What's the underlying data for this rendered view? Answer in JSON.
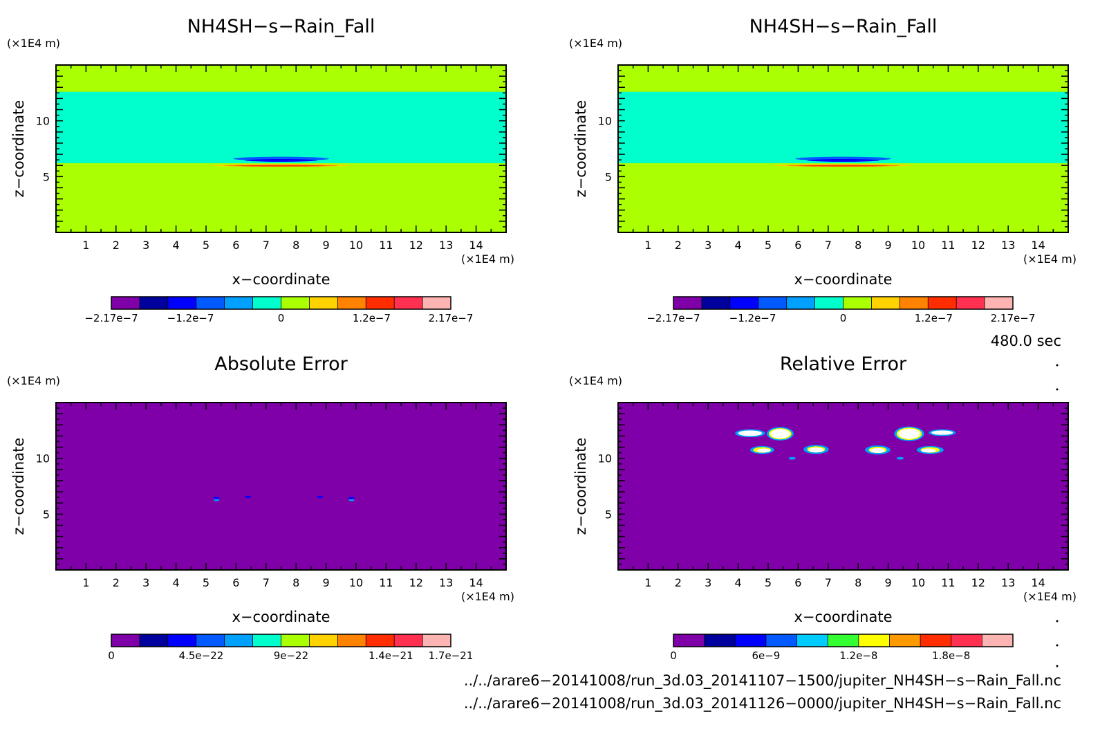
{
  "chart_data": [
    {
      "type": "heatmap",
      "title": "NH4SH−s−Rain_Fall",
      "xlabel": "x−coordinate",
      "ylabel": "z−coordinate",
      "x_unit": "(×1E4 m)",
      "y_unit": "(×1E4 m)",
      "xlim": [
        0,
        15
      ],
      "ylim": [
        0,
        15
      ],
      "xticks": [
        "1",
        "2",
        "3",
        "4",
        "5",
        "6",
        "7",
        "8",
        "9",
        "10",
        "11",
        "12",
        "13",
        "14"
      ],
      "yticks": [
        {
          "v": 5,
          "label": "5"
        },
        {
          "v": 10,
          "label": "10"
        }
      ],
      "colorbar": {
        "colors": [
          "#7f00a8",
          "#00009e",
          "#0000ff",
          "#005aff",
          "#00a0ff",
          "#00ffcc",
          "#aaff00",
          "#ffd200",
          "#ff8200",
          "#ff2d00",
          "#ff3050",
          "#ffb4b4"
        ],
        "labels": [
          {
            "f": 0,
            "label": "−2.17e−7"
          },
          {
            "f": 0.2333,
            "label": "−1.2e−7"
          },
          {
            "f": 0.5,
            "label": "0"
          },
          {
            "f": 0.7667,
            "label": "1.2e−7"
          },
          {
            "f": 1,
            "label": "2.17e−7"
          }
        ]
      },
      "background": "#aaff00",
      "regions": [
        {
          "zmin": 6.2,
          "zmax": 12.6,
          "xmin": 0,
          "xmax": 15,
          "color": "#00ffcc"
        }
      ],
      "features": [
        {
          "x": 7.5,
          "z": 6.6,
          "rx": 1.6,
          "rz": 0.18,
          "color": "#005aff"
        },
        {
          "x": 7.5,
          "z": 6.45,
          "rx": 1.2,
          "rz": 0.12,
          "color": "#0000ff"
        },
        {
          "x": 7.5,
          "z": 6.0,
          "rx": 2.3,
          "rz": 0.12,
          "color": "#ffd200"
        },
        {
          "x": 7.5,
          "z": 5.98,
          "rx": 1.9,
          "rz": 0.08,
          "color": "#ff8200"
        },
        {
          "x": 7.5,
          "z": 5.97,
          "rx": 1.5,
          "rz": 0.06,
          "color": "#ff2d00"
        }
      ]
    },
    {
      "type": "heatmap",
      "title": "NH4SH−s−Rain_Fall",
      "xlabel": "x−coordinate",
      "ylabel": "z−coordinate",
      "x_unit": "(×1E4 m)",
      "y_unit": "(×1E4 m)",
      "xlim": [
        0,
        15
      ],
      "ylim": [
        0,
        15
      ],
      "xticks": [
        "1",
        "2",
        "3",
        "4",
        "5",
        "6",
        "7",
        "8",
        "9",
        "10",
        "11",
        "12",
        "13",
        "14"
      ],
      "yticks": [
        {
          "v": 5,
          "label": "5"
        },
        {
          "v": 10,
          "label": "10"
        }
      ],
      "colorbar": {
        "colors": [
          "#7f00a8",
          "#00009e",
          "#0000ff",
          "#005aff",
          "#00a0ff",
          "#00ffcc",
          "#aaff00",
          "#ffd200",
          "#ff8200",
          "#ff2d00",
          "#ff3050",
          "#ffb4b4"
        ],
        "labels": [
          {
            "f": 0,
            "label": "−2.17e−7"
          },
          {
            "f": 0.2333,
            "label": "−1.2e−7"
          },
          {
            "f": 0.5,
            "label": "0"
          },
          {
            "f": 0.7667,
            "label": "1.2e−7"
          },
          {
            "f": 1,
            "label": "2.17e−7"
          }
        ]
      },
      "background": "#aaff00",
      "regions": [
        {
          "zmin": 6.2,
          "zmax": 12.6,
          "xmin": 0,
          "xmax": 15,
          "color": "#00ffcc"
        }
      ],
      "features": [
        {
          "x": 7.5,
          "z": 6.6,
          "rx": 1.6,
          "rz": 0.18,
          "color": "#005aff"
        },
        {
          "x": 7.5,
          "z": 6.45,
          "rx": 1.2,
          "rz": 0.12,
          "color": "#0000ff"
        },
        {
          "x": 7.5,
          "z": 6.0,
          "rx": 2.3,
          "rz": 0.12,
          "color": "#ffd200"
        },
        {
          "x": 7.5,
          "z": 5.98,
          "rx": 1.9,
          "rz": 0.08,
          "color": "#ff8200"
        },
        {
          "x": 7.5,
          "z": 5.97,
          "rx": 1.5,
          "rz": 0.06,
          "color": "#ff2d00"
        }
      ]
    },
    {
      "type": "heatmap",
      "title": "Absolute Error",
      "xlabel": "x−coordinate",
      "ylabel": "z−coordinate",
      "x_unit": "(×1E4 m)",
      "y_unit": "(×1E4 m)",
      "xlim": [
        0,
        15
      ],
      "ylim": [
        0,
        15
      ],
      "xticks": [
        "1",
        "2",
        "3",
        "4",
        "5",
        "6",
        "7",
        "8",
        "9",
        "10",
        "11",
        "12",
        "13",
        "14"
      ],
      "yticks": [
        {
          "v": 5,
          "label": "5"
        },
        {
          "v": 10,
          "label": "10"
        }
      ],
      "colorbar": {
        "colors": [
          "#7f00a8",
          "#00009e",
          "#0000ff",
          "#005aff",
          "#00a0ff",
          "#00ffcc",
          "#aaff00",
          "#ffd200",
          "#ff8200",
          "#ff2d00",
          "#ff3050",
          "#ffb4b4"
        ],
        "labels": [
          {
            "f": 0,
            "label": "0"
          },
          {
            "f": 0.2647,
            "label": "4.5e−22"
          },
          {
            "f": 0.5294,
            "label": "9e−22"
          },
          {
            "f": 0.8235,
            "label": "1.4e−21"
          },
          {
            "f": 1,
            "label": "1.7e−21"
          }
        ]
      },
      "background": "#7f00a8",
      "regions": [],
      "features": [
        {
          "x": 5.35,
          "z": 6.45,
          "rx": 0.1,
          "rz": 0.1,
          "color": "#0000ff"
        },
        {
          "x": 5.35,
          "z": 6.25,
          "rx": 0.1,
          "rz": 0.08,
          "color": "#00a0ff"
        },
        {
          "x": 6.4,
          "z": 6.55,
          "rx": 0.1,
          "rz": 0.1,
          "color": "#0000ff"
        },
        {
          "x": 8.8,
          "z": 6.55,
          "rx": 0.1,
          "rz": 0.1,
          "color": "#0000ff"
        },
        {
          "x": 9.85,
          "z": 6.45,
          "rx": 0.1,
          "rz": 0.1,
          "color": "#0000ff"
        },
        {
          "x": 9.85,
          "z": 6.25,
          "rx": 0.1,
          "rz": 0.08,
          "color": "#00a0ff"
        }
      ]
    },
    {
      "type": "heatmap",
      "title": "Relative Error",
      "xlabel": "x−coordinate",
      "ylabel": "z−coordinate",
      "x_unit": "(×1E4 m)",
      "y_unit": "(×1E4 m)",
      "xlim": [
        0,
        15
      ],
      "ylim": [
        0,
        15
      ],
      "xticks": [
        "1",
        "2",
        "3",
        "4",
        "5",
        "6",
        "7",
        "8",
        "9",
        "10",
        "11",
        "12",
        "13",
        "14"
      ],
      "yticks": [
        {
          "v": 5,
          "label": "5"
        },
        {
          "v": 10,
          "label": "10"
        }
      ],
      "colorbar": {
        "colors": [
          "#7f00a8",
          "#00009e",
          "#0000ff",
          "#005aff",
          "#00ccff",
          "#33ff33",
          "#ffff00",
          "#ff9900",
          "#ff2d00",
          "#ff3050",
          "#ffb4b4"
        ],
        "labels": [
          {
            "f": 0,
            "label": "0"
          },
          {
            "f": 0.2727,
            "label": "6e−9"
          },
          {
            "f": 0.5455,
            "label": "1.2e−8"
          },
          {
            "f": 0.8182,
            "label": "1.8e−8"
          }
        ]
      },
      "background": "#7f00a8",
      "regions": [],
      "features": [
        {
          "x": 4.4,
          "z": 12.25,
          "rx": 0.5,
          "rz": 0.35,
          "color": "#00a0ff"
        },
        {
          "x": 4.4,
          "z": 12.25,
          "rx": 0.4,
          "rz": 0.25,
          "color": "#ffffff"
        },
        {
          "x": 5.4,
          "z": 12.2,
          "rx": 0.45,
          "rz": 0.6,
          "color": "#00a0ff"
        },
        {
          "x": 5.4,
          "z": 12.2,
          "rx": 0.38,
          "rz": 0.5,
          "color": "#ffff00"
        },
        {
          "x": 5.4,
          "z": 12.2,
          "rx": 0.32,
          "rz": 0.42,
          "color": "#ffffff"
        },
        {
          "x": 4.8,
          "z": 10.75,
          "rx": 0.4,
          "rz": 0.35,
          "color": "#00a0ff"
        },
        {
          "x": 4.8,
          "z": 10.75,
          "rx": 0.3,
          "rz": 0.25,
          "color": "#ffff00"
        },
        {
          "x": 4.85,
          "z": 10.7,
          "rx": 0.22,
          "rz": 0.18,
          "color": "#ffffff"
        },
        {
          "x": 6.6,
          "z": 10.8,
          "rx": 0.42,
          "rz": 0.4,
          "color": "#00a0ff"
        },
        {
          "x": 6.6,
          "z": 10.8,
          "rx": 0.3,
          "rz": 0.28,
          "color": "#ffff00"
        },
        {
          "x": 6.6,
          "z": 10.75,
          "rx": 0.24,
          "rz": 0.22,
          "color": "#ffffff"
        },
        {
          "x": 5.8,
          "z": 10.0,
          "rx": 0.12,
          "rz": 0.12,
          "color": "#00a0ff"
        },
        {
          "x": 9.4,
          "z": 10.0,
          "rx": 0.12,
          "rz": 0.12,
          "color": "#00a0ff"
        },
        {
          "x": 8.65,
          "z": 10.75,
          "rx": 0.42,
          "rz": 0.4,
          "color": "#00a0ff"
        },
        {
          "x": 8.65,
          "z": 10.75,
          "rx": 0.3,
          "rz": 0.28,
          "color": "#ffff00"
        },
        {
          "x": 8.65,
          "z": 10.7,
          "rx": 0.24,
          "rz": 0.22,
          "color": "#ffffff"
        },
        {
          "x": 9.7,
          "z": 12.2,
          "rx": 0.5,
          "rz": 0.65,
          "color": "#00a0ff"
        },
        {
          "x": 9.7,
          "z": 12.2,
          "rx": 0.42,
          "rz": 0.55,
          "color": "#ffff00"
        },
        {
          "x": 9.7,
          "z": 12.2,
          "rx": 0.36,
          "rz": 0.46,
          "color": "#ffffff"
        },
        {
          "x": 10.8,
          "z": 12.3,
          "rx": 0.45,
          "rz": 0.3,
          "color": "#00a0ff"
        },
        {
          "x": 10.8,
          "z": 12.3,
          "rx": 0.36,
          "rz": 0.2,
          "color": "#ffffff"
        },
        {
          "x": 10.4,
          "z": 10.75,
          "rx": 0.45,
          "rz": 0.35,
          "color": "#00a0ff"
        },
        {
          "x": 10.4,
          "z": 10.75,
          "rx": 0.32,
          "rz": 0.25,
          "color": "#ffff00"
        },
        {
          "x": 10.35,
          "z": 10.7,
          "rx": 0.24,
          "rz": 0.18,
          "color": "#ffffff"
        }
      ]
    }
  ],
  "time_label": "480.0 sec",
  "file_paths": [
    "../../arare6−20141008/run_3d.03_20141107−1500/jupiter_NH4SH−s−Rain_Fall.nc",
    "../../arare6−20141008/run_3d.03_20141126−0000/jupiter_NH4SH−s−Rain_Fall.nc"
  ]
}
